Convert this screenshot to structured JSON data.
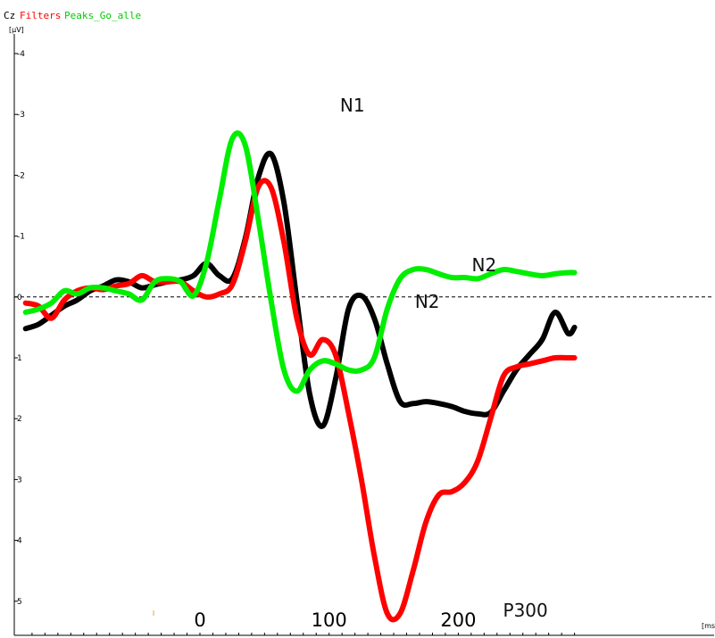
{
  "chart_data": {
    "type": "line",
    "title": "",
    "channel": "Cz",
    "y_unit": "[µV]",
    "x_unit": "[ms]",
    "y_inverted": true,
    "ylim": [
      -4.5,
      5.5
    ],
    "xlim": [
      -135,
      290
    ],
    "y_ticks": [
      -4,
      -3,
      -2,
      -1,
      0,
      1,
      2,
      3,
      4,
      5
    ],
    "y_tick_labels": [
      "-4",
      "-3",
      "-2",
      "-1",
      "0",
      "1",
      "2",
      "3",
      "4",
      "5"
    ],
    "x_tick_values": [
      0,
      100,
      200
    ],
    "x_tick_labels": [
      "0",
      "100",
      "200"
    ],
    "zero_line": "dashed",
    "grid": false,
    "legend_placement": "top-left",
    "series": [
      {
        "name": "Cz",
        "color": "#000000",
        "x": [
          -135,
          -125,
          -115,
          -105,
          -95,
          -85,
          -75,
          -65,
          -55,
          -45,
          -35,
          -25,
          -15,
          -5,
          5,
          15,
          25,
          35,
          45,
          55,
          65,
          75,
          85,
          95,
          105,
          115,
          125,
          135,
          145,
          155,
          165,
          175,
          185,
          195,
          205,
          215,
          225,
          235,
          245,
          255,
          265,
          275,
          285,
          290
        ],
        "y": [
          0.52,
          0.45,
          0.3,
          0.15,
          0.05,
          -0.1,
          -0.18,
          -0.28,
          -0.25,
          -0.15,
          -0.2,
          -0.25,
          -0.28,
          -0.35,
          -0.55,
          -0.35,
          -0.3,
          -0.95,
          -1.95,
          -2.35,
          -1.55,
          0.05,
          1.6,
          2.12,
          1.35,
          0.2,
          -0.02,
          0.35,
          1.1,
          1.72,
          1.75,
          1.72,
          1.75,
          1.8,
          1.88,
          1.92,
          1.9,
          1.55,
          1.2,
          0.95,
          0.7,
          0.25,
          0.6,
          0.5
        ]
      },
      {
        "name": "Filters",
        "color": "#ff0000",
        "x": [
          -135,
          -125,
          -115,
          -105,
          -95,
          -85,
          -75,
          -65,
          -55,
          -45,
          -35,
          -25,
          -15,
          -5,
          5,
          15,
          25,
          35,
          45,
          55,
          65,
          75,
          85,
          95,
          105,
          115,
          125,
          135,
          145,
          155,
          165,
          175,
          185,
          195,
          205,
          215,
          225,
          235,
          245,
          255,
          265,
          275,
          285,
          290
        ],
        "y": [
          0.1,
          0.15,
          0.35,
          0.05,
          -0.1,
          -0.15,
          -0.12,
          -0.18,
          -0.22,
          -0.35,
          -0.25,
          -0.25,
          -0.25,
          -0.1,
          0.0,
          -0.05,
          -0.2,
          -0.9,
          -1.8,
          -1.8,
          -0.9,
          0.35,
          0.95,
          0.7,
          0.95,
          1.9,
          3.0,
          4.25,
          5.2,
          5.2,
          4.5,
          3.7,
          3.25,
          3.2,
          3.05,
          2.7,
          2.0,
          1.3,
          1.15,
          1.1,
          1.05,
          1.0,
          1.0,
          1.0
        ]
      },
      {
        "name": "Peaks_Go_alle",
        "color": "#00ee00",
        "x": [
          -135,
          -125,
          -115,
          -105,
          -95,
          -85,
          -75,
          -65,
          -55,
          -45,
          -35,
          -25,
          -15,
          -5,
          5,
          15,
          25,
          35,
          45,
          55,
          65,
          75,
          85,
          95,
          105,
          115,
          125,
          135,
          145,
          155,
          165,
          175,
          185,
          195,
          205,
          215,
          225,
          235,
          245,
          255,
          265,
          275,
          285,
          290
        ],
        "y": [
          0.25,
          0.2,
          0.1,
          -0.1,
          -0.05,
          -0.15,
          -0.15,
          -0.1,
          -0.05,
          0.05,
          -0.25,
          -0.3,
          -0.25,
          -0.02,
          -0.55,
          -1.6,
          -2.6,
          -2.5,
          -1.3,
          0.05,
          1.2,
          1.55,
          1.2,
          1.05,
          1.1,
          1.2,
          1.2,
          1.0,
          0.2,
          -0.3,
          -0.45,
          -0.45,
          -0.38,
          -0.32,
          -0.32,
          -0.3,
          -0.38,
          -0.45,
          -0.42,
          -0.38,
          -0.35,
          -0.38,
          -0.4,
          -0.4
        ]
      }
    ],
    "annotations": [
      {
        "text": "N1",
        "x": 118,
        "y": -3.05
      },
      {
        "text": "N2",
        "x": 220,
        "y": -0.42
      },
      {
        "text": "N2",
        "x": 176,
        "y": 0.18
      },
      {
        "text": "P300",
        "x": 252,
        "y": 5.25
      }
    ]
  }
}
